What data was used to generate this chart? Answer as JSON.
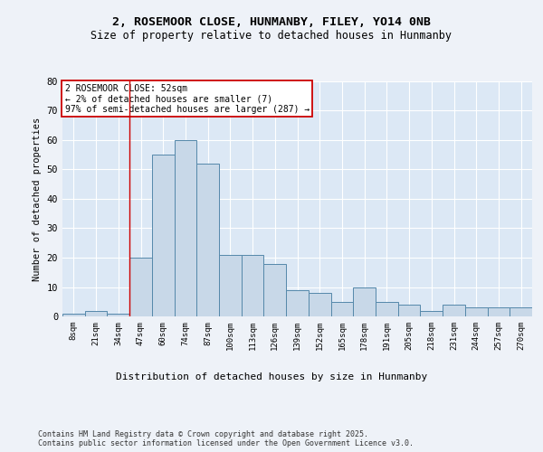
{
  "title1": "2, ROSEMOOR CLOSE, HUNMANBY, FILEY, YO14 0NB",
  "title2": "Size of property relative to detached houses in Hunmanby",
  "xlabel": "Distribution of detached houses by size in Hunmanby",
  "ylabel": "Number of detached properties",
  "categories": [
    "8sqm",
    "21sqm",
    "34sqm",
    "47sqm",
    "60sqm",
    "74sqm",
    "87sqm",
    "100sqm",
    "113sqm",
    "126sqm",
    "139sqm",
    "152sqm",
    "165sqm",
    "178sqm",
    "191sqm",
    "205sqm",
    "218sqm",
    "231sqm",
    "244sqm",
    "257sqm",
    "270sqm"
  ],
  "values": [
    1,
    2,
    1,
    20,
    55,
    60,
    52,
    21,
    21,
    18,
    9,
    8,
    5,
    10,
    5,
    4,
    2,
    4,
    3,
    3,
    3
  ],
  "bar_color": "#c8d8e8",
  "bar_edge_color": "#5588aa",
  "annotation_text": "2 ROSEMOOR CLOSE: 52sqm\n← 2% of detached houses are smaller (7)\n97% of semi-detached houses are larger (287) →",
  "annotation_box_color": "#ffffff",
  "annotation_box_edge": "#cc0000",
  "footer": "Contains HM Land Registry data © Crown copyright and database right 2025.\nContains public sector information licensed under the Open Government Licence v3.0.",
  "bg_color": "#eef2f8",
  "plot_bg_color": "#dce8f5",
  "grid_color": "#ffffff",
  "ylim": [
    0,
    80
  ],
  "yticks": [
    0,
    10,
    20,
    30,
    40,
    50,
    60,
    70,
    80
  ],
  "red_line_x": 2.5
}
